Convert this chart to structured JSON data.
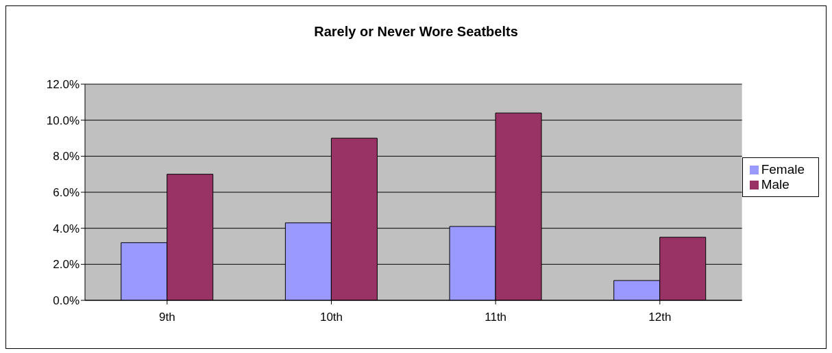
{
  "chart_data": {
    "type": "bar",
    "title": "Rarely or Never Wore Seatbelts",
    "categories": [
      "9th",
      "10th",
      "11th",
      "12th"
    ],
    "series": [
      {
        "name": "Female",
        "color": "#9999ff",
        "values": [
          3.2,
          4.3,
          4.1,
          1.1
        ]
      },
      {
        "name": "Male",
        "color": "#993366",
        "values": [
          7.0,
          9.0,
          10.4,
          3.5
        ]
      }
    ],
    "ylim": [
      0,
      12
    ],
    "yticks": [
      {
        "value": 0,
        "label": "0.0%"
      },
      {
        "value": 2,
        "label": "2.0%"
      },
      {
        "value": 4,
        "label": "4.0%"
      },
      {
        "value": 6,
        "label": "6.0%"
      },
      {
        "value": 8,
        "label": "8.0%"
      },
      {
        "value": 10,
        "label": "10.0%"
      },
      {
        "value": 12,
        "label": "12.0%"
      }
    ],
    "grid": "y",
    "legend": "right"
  }
}
